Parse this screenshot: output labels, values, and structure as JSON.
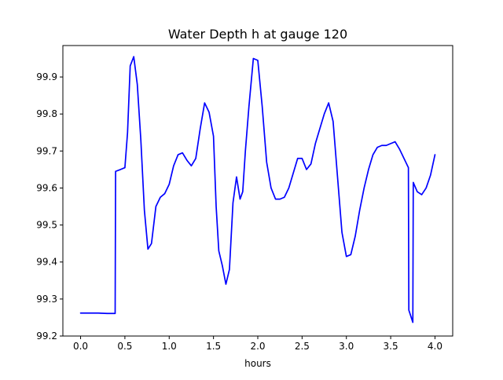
{
  "chart_data": {
    "type": "line",
    "title": "Water Depth h at gauge 120",
    "xlabel": "hours",
    "ylabel": "",
    "xlim": [
      -0.2,
      4.2
    ],
    "ylim": [
      99.2,
      99.985
    ],
    "grid": false,
    "legend": "none",
    "x_ticks": [
      {
        "value": 0.0,
        "label": "0.0"
      },
      {
        "value": 0.5,
        "label": "0.5"
      },
      {
        "value": 1.0,
        "label": "1.0"
      },
      {
        "value": 1.5,
        "label": "1.5"
      },
      {
        "value": 2.0,
        "label": "2.0"
      },
      {
        "value": 2.5,
        "label": "2.5"
      },
      {
        "value": 3.0,
        "label": "3.0"
      },
      {
        "value": 3.5,
        "label": "3.5"
      },
      {
        "value": 4.0,
        "label": "4.0"
      }
    ],
    "y_ticks": [
      {
        "value": 99.2,
        "label": "99.2"
      },
      {
        "value": 99.3,
        "label": "99.3"
      },
      {
        "value": 99.4,
        "label": "99.4"
      },
      {
        "value": 99.5,
        "label": "99.5"
      },
      {
        "value": 99.6,
        "label": "99.6"
      },
      {
        "value": 99.7,
        "label": "99.7"
      },
      {
        "value": 99.8,
        "label": "99.8"
      },
      {
        "value": 99.9,
        "label": "99.9"
      }
    ],
    "series": [
      {
        "color": "#0000ff",
        "x": [
          0.0,
          0.1,
          0.2,
          0.3,
          0.39,
          0.395,
          0.45,
          0.5,
          0.53,
          0.56,
          0.6,
          0.64,
          0.68,
          0.72,
          0.76,
          0.8,
          0.85,
          0.9,
          0.95,
          1.0,
          1.05,
          1.1,
          1.15,
          1.2,
          1.25,
          1.3,
          1.35,
          1.4,
          1.45,
          1.5,
          1.53,
          1.56,
          1.6,
          1.64,
          1.68,
          1.72,
          1.76,
          1.8,
          1.83,
          1.86,
          1.9,
          1.95,
          2.0,
          2.05,
          2.1,
          2.15,
          2.2,
          2.25,
          2.3,
          2.35,
          2.4,
          2.45,
          2.5,
          2.55,
          2.6,
          2.65,
          2.7,
          2.75,
          2.8,
          2.85,
          2.9,
          2.95,
          3.0,
          3.05,
          3.1,
          3.15,
          3.2,
          3.25,
          3.3,
          3.35,
          3.4,
          3.45,
          3.5,
          3.55,
          3.6,
          3.65,
          3.7,
          3.705,
          3.75,
          3.755,
          3.8,
          3.85,
          3.9,
          3.95,
          4.0
        ],
        "y": [
          99.262,
          99.262,
          99.262,
          99.261,
          99.261,
          99.645,
          99.65,
          99.655,
          99.75,
          99.93,
          99.955,
          99.88,
          99.73,
          99.54,
          99.435,
          99.45,
          99.55,
          99.575,
          99.585,
          99.61,
          99.66,
          99.69,
          99.695,
          99.675,
          99.66,
          99.68,
          99.76,
          99.83,
          99.805,
          99.74,
          99.55,
          99.43,
          99.39,
          99.34,
          99.38,
          99.56,
          99.63,
          99.57,
          99.59,
          99.7,
          99.82,
          99.95,
          99.945,
          99.82,
          99.67,
          99.6,
          99.57,
          99.57,
          99.575,
          99.6,
          99.64,
          99.68,
          99.68,
          99.65,
          99.665,
          99.72,
          99.76,
          99.8,
          99.83,
          99.78,
          99.63,
          99.48,
          99.415,
          99.42,
          99.47,
          99.54,
          99.6,
          99.65,
          99.69,
          99.71,
          99.715,
          99.715,
          99.72,
          99.725,
          99.705,
          99.68,
          99.655,
          99.27,
          99.237,
          99.615,
          99.59,
          99.582,
          99.6,
          99.635,
          99.69
        ]
      }
    ]
  }
}
